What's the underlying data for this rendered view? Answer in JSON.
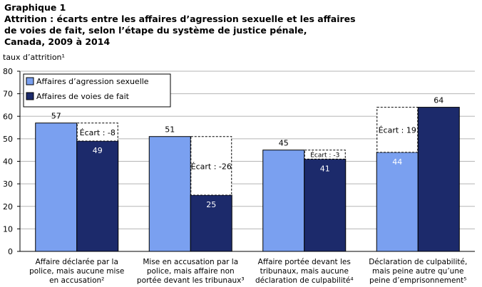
{
  "chart_data": {
    "type": "bar",
    "title_lines": [
      "Graphique  1",
      "Attrition  : écarts entre les affaires d’agression sexuelle et les affaires",
      "de voies de fait, selon l’étape du système de justice pénale,",
      "Canada, 2009 à 2014"
    ],
    "ylabel": "taux d’attrition¹",
    "xlabel": "",
    "ylim": [
      0,
      80
    ],
    "yticks": [
      0,
      10,
      20,
      30,
      40,
      50,
      60,
      70,
      80
    ],
    "grid": true,
    "legend_position": "top-left",
    "categories": [
      [
        "Affaire déclarée par la",
        "police, mais aucune mise",
        "en accusation²"
      ],
      [
        "Mise en accusation par la",
        "police, mais affaire non",
        "portée devant les tribunaux³"
      ],
      [
        "Affaire portée devant les",
        "tribunaux, mais aucune",
        "déclaration de culpabilité⁴"
      ],
      [
        "Déclaration de culpabilité,",
        "mais peine autre qu’une",
        "peine d’emprisonnement⁵"
      ]
    ],
    "series": [
      {
        "name": "Affaires d’agression sexuelle",
        "color": "#7aa0f0",
        "values": [
          57,
          51,
          45,
          44
        ],
        "labels": [
          "57",
          "51",
          "45",
          "44"
        ]
      },
      {
        "name": "Affaires de voies de fait",
        "color": "#1c2a6b",
        "values": [
          49,
          25,
          41,
          64
        ],
        "labels": [
          "49",
          "25",
          "41",
          "64"
        ]
      }
    ],
    "gaps": [
      "Écart : -8",
      "Écart : -26",
      "Écart :  -3",
      "Écart : 19"
    ]
  }
}
